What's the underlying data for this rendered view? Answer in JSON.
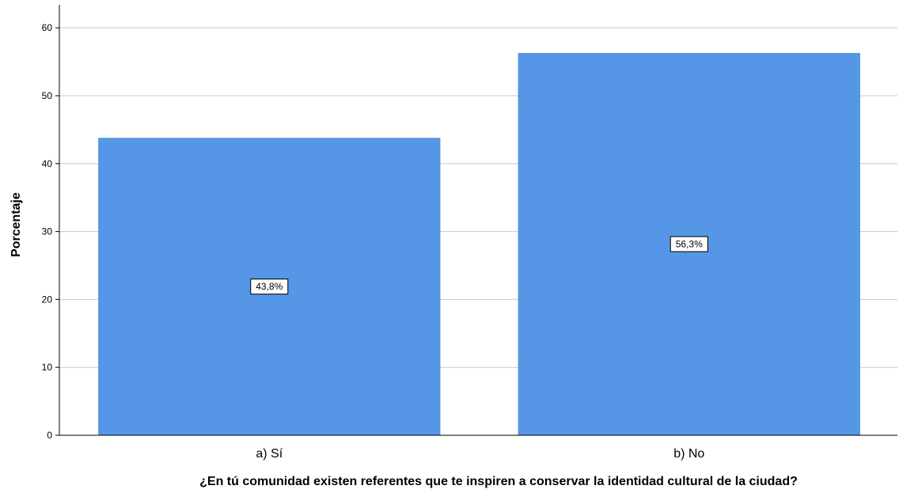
{
  "chart_data": {
    "type": "bar",
    "categories": [
      "a) Sí",
      "b) No"
    ],
    "values": [
      43.8,
      56.3
    ],
    "data_labels": [
      "43,8%",
      "56,3%"
    ],
    "xlabel": "¿En tú comunidad existen referentes que te inspiren a conservar la identidad cultural de la ciudad?",
    "ylabel": "Porcentaje",
    "ylim": [
      0,
      60
    ],
    "yticks": [
      0,
      10,
      20,
      30,
      40,
      50,
      60
    ],
    "grid": true,
    "bar_color": "#5596e6",
    "grid_color": "#c8c8c8",
    "legend": "none"
  }
}
